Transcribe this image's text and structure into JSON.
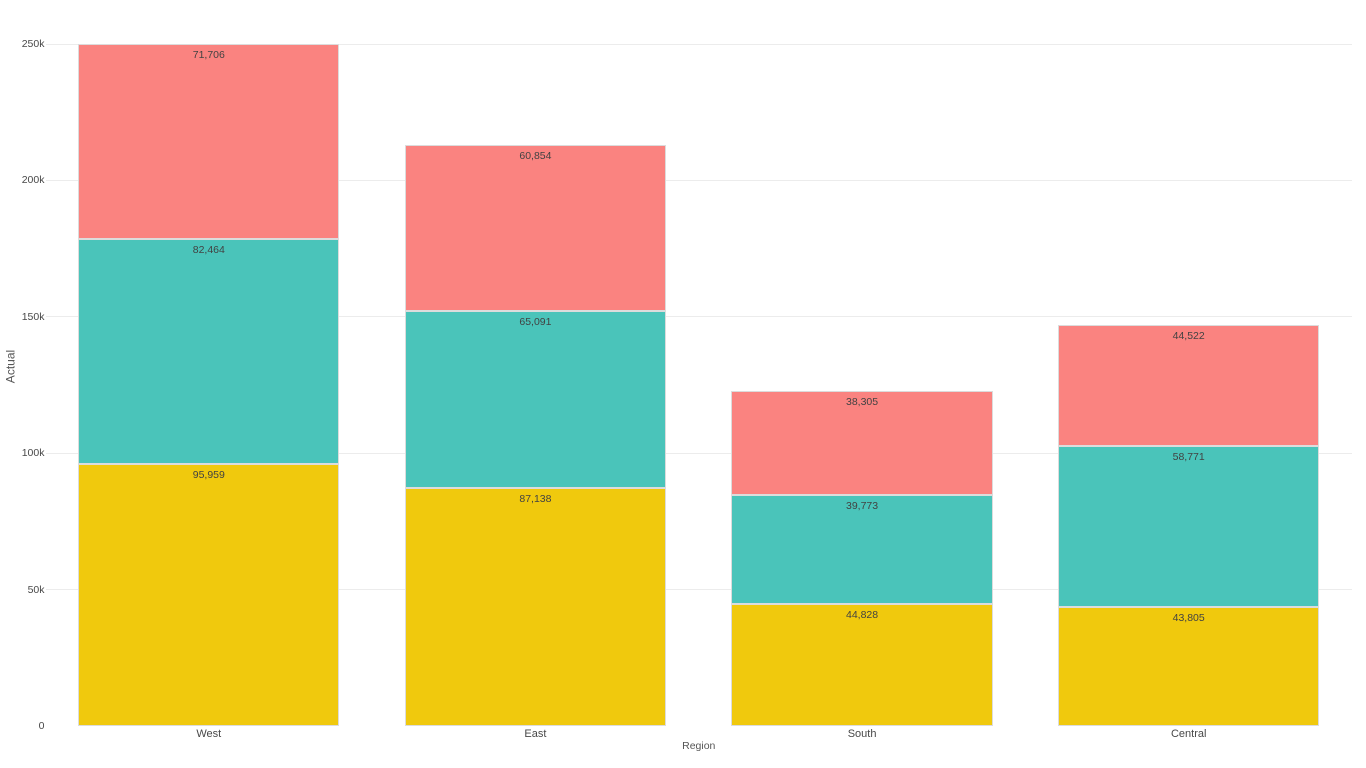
{
  "chart_data": {
    "type": "bar",
    "stacked": true,
    "orientation": "vertical",
    "title": "",
    "xlabel": "Region",
    "ylabel": "Actual",
    "categories": [
      "West",
      "East",
      "South",
      "Central"
    ],
    "series": [
      {
        "name": "segment-bottom",
        "color": "#f0c90d",
        "values": [
          95959,
          87138,
          44828,
          43805
        ],
        "labels": [
          "95,959",
          "87,138",
          "44,828",
          "43,805"
        ]
      },
      {
        "name": "segment-middle",
        "color": "#4ac4ba",
        "values": [
          82464,
          65091,
          39773,
          58771
        ],
        "labels": [
          "82,464",
          "65,091",
          "39,773",
          "58,771"
        ]
      },
      {
        "name": "segment-top",
        "color": "#fa8380",
        "values": [
          71706,
          60854,
          38305,
          44522
        ],
        "labels": [
          "71,706",
          "60,854",
          "38,305",
          "44,522"
        ]
      }
    ],
    "totals": [
      250129,
      213083,
      122906,
      147098
    ],
    "y_ticks": [
      {
        "label": "0",
        "value": 0
      },
      {
        "label": "50k",
        "value": 50000
      },
      {
        "label": "100k",
        "value": 100000
      },
      {
        "label": "150k",
        "value": 150000
      },
      {
        "label": "200k",
        "value": 200000
      },
      {
        "label": "250k",
        "value": 250000
      }
    ],
    "ylim": [
      0,
      250000
    ],
    "grid": true,
    "legend": false
  },
  "colors": {
    "background": "#ffffff",
    "gridline": "#ececec",
    "segment_border": "#dcdcdc",
    "tick_label": "#484848",
    "category_label": "#484848",
    "value_label": "#424242",
    "axis_title": "#565656"
  }
}
